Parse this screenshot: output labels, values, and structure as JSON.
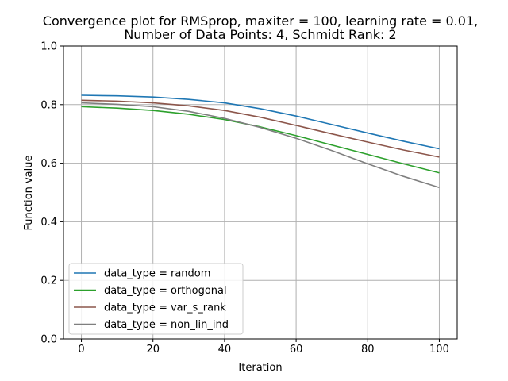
{
  "chart_data": {
    "type": "line",
    "title_line1": "Convergence plot for RMSprop, maxiter = 100, learning rate = 0.01,",
    "title_line2": "Number of Data Points: 4, Schmidt Rank: 2",
    "xlabel": "Iteration",
    "ylabel": "Function value",
    "xlim": [
      -5,
      105
    ],
    "ylim": [
      0.0,
      1.0
    ],
    "xticks": [
      0,
      20,
      40,
      60,
      80,
      100
    ],
    "yticks": [
      0.0,
      0.2,
      0.4,
      0.6,
      0.8,
      1.0
    ],
    "xtick_labels": [
      "0",
      "20",
      "40",
      "60",
      "80",
      "100"
    ],
    "ytick_labels": [
      "0.0",
      "0.2",
      "0.4",
      "0.6",
      "0.8",
      "1.0"
    ],
    "grid": true,
    "legend_position": "lower-left",
    "x": [
      0,
      10,
      20,
      30,
      40,
      50,
      60,
      70,
      80,
      90,
      100
    ],
    "series": [
      {
        "name": "data_type = random",
        "color": "#1f77b4",
        "values": [
          0.832,
          0.83,
          0.826,
          0.818,
          0.806,
          0.786,
          0.761,
          0.732,
          0.703,
          0.675,
          0.649
        ]
      },
      {
        "name": "data_type = orthogonal",
        "color": "#2ca02c",
        "values": [
          0.793,
          0.788,
          0.78,
          0.767,
          0.749,
          0.724,
          0.694,
          0.662,
          0.63,
          0.598,
          0.567
        ]
      },
      {
        "name": "data_type = var_s_rank",
        "color": "#8c564b",
        "values": [
          0.815,
          0.812,
          0.806,
          0.796,
          0.78,
          0.757,
          0.729,
          0.7,
          0.672,
          0.645,
          0.621
        ]
      },
      {
        "name": "data_type = non_lin_ind",
        "color": "#7f7f7f",
        "values": [
          0.806,
          0.801,
          0.793,
          0.777,
          0.753,
          0.722,
          0.685,
          0.643,
          0.598,
          0.555,
          0.517
        ]
      }
    ]
  }
}
